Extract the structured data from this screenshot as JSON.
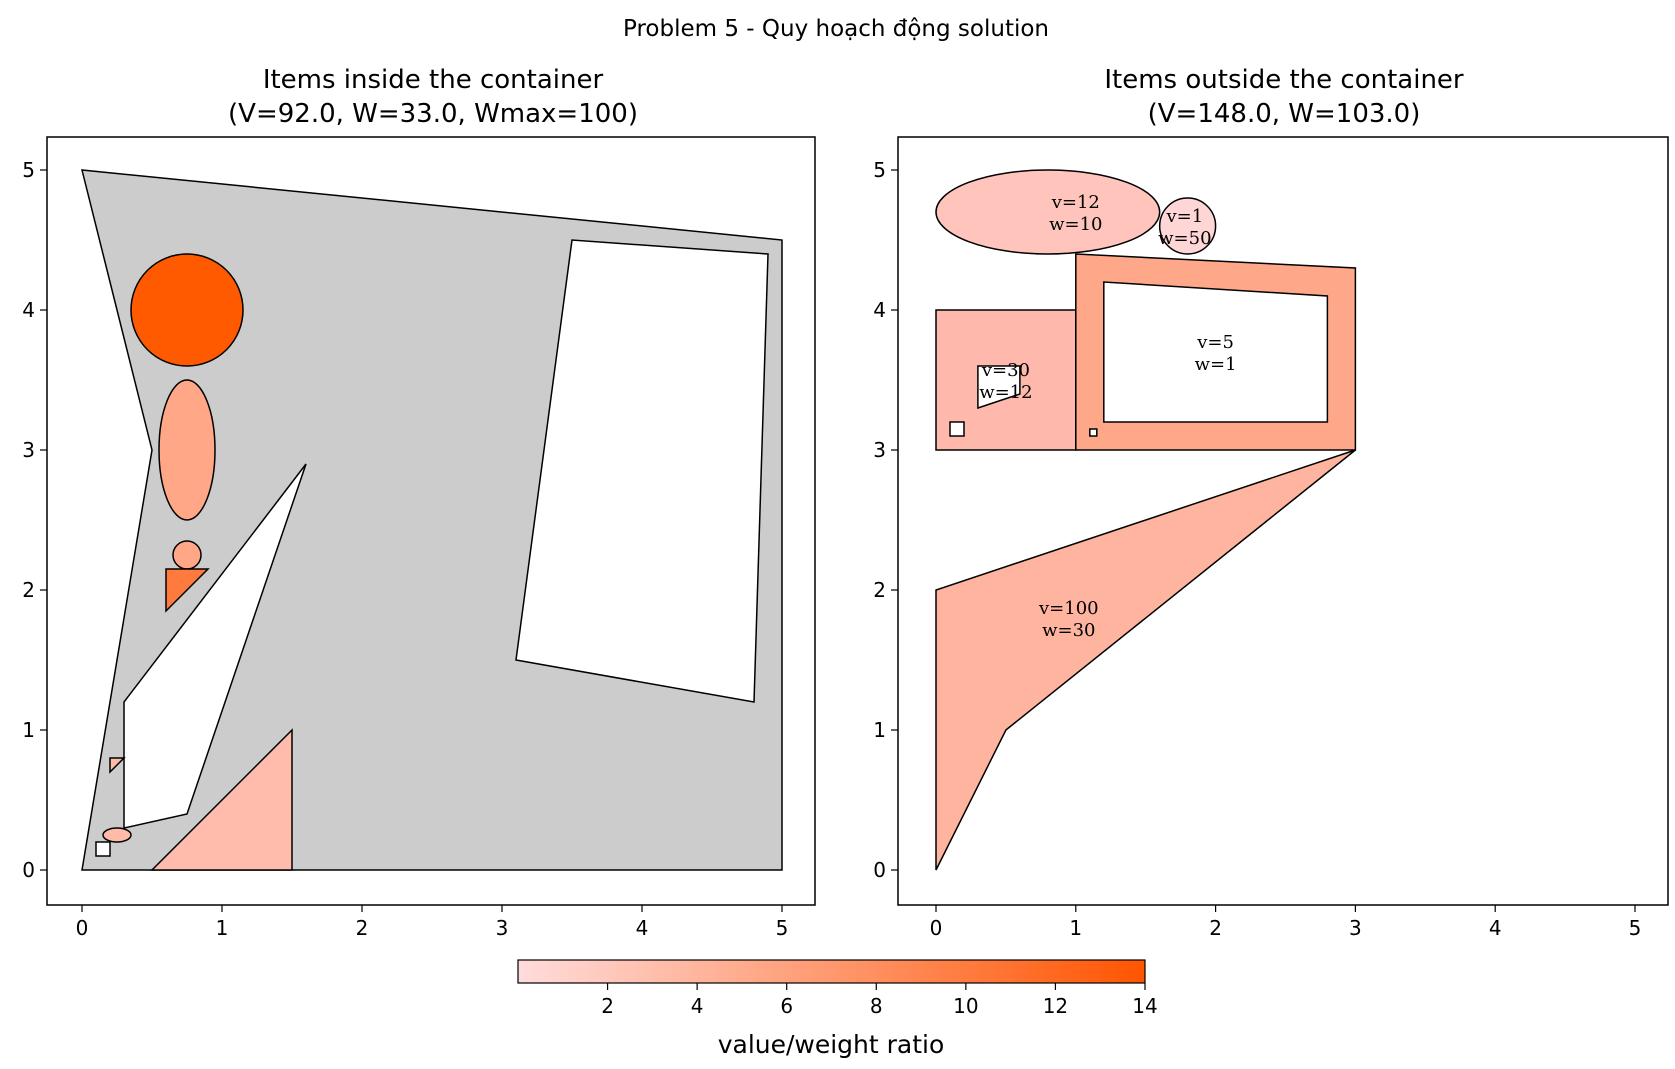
{
  "figure": {
    "suptitle": "Problem 5 - Quy hoạch động solution"
  },
  "chart_data": [
    {
      "type": "polygon-packing",
      "title_line1": "Items inside the container",
      "title_line2": "(V=92.0, W=33.0, Wmax=100)",
      "xlim": [
        -0.25,
        5.25
      ],
      "ylim": [
        -0.25,
        5.25
      ],
      "xticks": [
        "0",
        "1",
        "2",
        "3",
        "4",
        "5"
      ],
      "yticks": [
        "0",
        "1",
        "2",
        "3",
        "4",
        "5"
      ],
      "container": {
        "fill": "#cccccc",
        "outline": [
          [
            0,
            0
          ],
          [
            5,
            0
          ],
          [
            5,
            4.5
          ],
          [
            0,
            5
          ],
          [
            0.5,
            3
          ]
        ],
        "holes": [
          [
            [
              0.3,
              0.3
            ],
            [
              0.75,
              0.4
            ],
            [
              1.6,
              2.9
            ],
            [
              0.3,
              1.2
            ]
          ],
          [
            [
              3.1,
              1.5
            ],
            [
              4.8,
              1.2
            ],
            [
              4.9,
              4.4
            ],
            [
              3.5,
              4.5
            ]
          ]
        ]
      },
      "items": [
        {
          "shape": "circle",
          "center": [
            0.75,
            4.0
          ],
          "r": 0.4,
          "ratio": 14,
          "fill": "#ff5a00"
        },
        {
          "shape": "ellipse",
          "center": [
            0.75,
            3.0
          ],
          "rx": 0.2,
          "ry": 0.5,
          "ratio": 5.5,
          "fill": "#ffa786"
        },
        {
          "shape": "circle",
          "center": [
            0.75,
            2.25
          ],
          "r": 0.1,
          "ratio": 5.5,
          "fill": "#ffa786"
        },
        {
          "shape": "polygon",
          "points": [
            [
              0.6,
              2.15
            ],
            [
              0.9,
              2.15
            ],
            [
              0.6,
              1.85
            ]
          ],
          "ratio": 10,
          "fill": "#ff7a3d"
        },
        {
          "shape": "polygon",
          "points": [
            [
              0.5,
              0
            ],
            [
              1.5,
              0
            ],
            [
              1.5,
              1.0
            ]
          ],
          "ratio": 3.5,
          "fill": "#ffbcad"
        },
        {
          "shape": "polygon",
          "points": [
            [
              0.2,
              0.7
            ],
            [
              0.3,
              0.8
            ],
            [
              0.2,
              0.8
            ]
          ],
          "ratio": 3,
          "fill": "#ffbaa8"
        },
        {
          "shape": "ellipse",
          "center": [
            0.25,
            0.25
          ],
          "rx": 0.1,
          "ry": 0.05,
          "ratio": 3,
          "fill": "#ffbaa8"
        },
        {
          "shape": "polygon",
          "points": [
            [
              0.1,
              0.1
            ],
            [
              0.2,
              0.1
            ],
            [
              0.2,
              0.2
            ],
            [
              0.1,
              0.2
            ]
          ],
          "ratio": 0,
          "fill": "#ffffff"
        }
      ]
    },
    {
      "type": "polygon-packing",
      "title_line1": "Items outside the container",
      "title_line2": "(V=148.0, W=103.0)",
      "xlim": [
        -0.25,
        5.25
      ],
      "ylim": [
        -0.25,
        5.25
      ],
      "xticks": [
        "0",
        "1",
        "2",
        "3",
        "4",
        "5"
      ],
      "yticks": [
        "0",
        "1",
        "2",
        "3",
        "4",
        "5"
      ],
      "items": [
        {
          "shape": "ellipse",
          "center": [
            0.8,
            4.7
          ],
          "rx": 0.8,
          "ry": 0.3,
          "ratio": 1.2,
          "fill": "#ffc4bc",
          "label": "v=12\nw=10",
          "label_pos": [
            1.0,
            4.7
          ]
        },
        {
          "shape": "circle",
          "center": [
            1.8,
            4.6
          ],
          "r": 0.2,
          "ratio": 0.02,
          "fill": "#ffd6d6",
          "label": "v=1\nw=50",
          "label_pos": [
            1.78,
            4.6
          ]
        },
        {
          "shape": "polygon",
          "points": [
            [
              0,
              3
            ],
            [
              1,
              3
            ],
            [
              1,
              4
            ],
            [
              0,
              4
            ]
          ],
          "ratio": 2.5,
          "fill": "#ffb9ac",
          "holes": [
            [
              [
                0.3,
                3.3
              ],
              [
                0.6,
                3.4
              ],
              [
                0.6,
                3.6
              ],
              [
                0.3,
                3.6
              ]
            ],
            [
              [
                0.1,
                3.1
              ],
              [
                0.2,
                3.1
              ],
              [
                0.2,
                3.2
              ],
              [
                0.1,
                3.2
              ]
            ]
          ],
          "label": "v=30\nw=12",
          "label_pos": [
            0.5,
            3.5
          ]
        },
        {
          "shape": "polygon",
          "points": [
            [
              1,
              3
            ],
            [
              3,
              3
            ],
            [
              3,
              4.3
            ],
            [
              1,
              4.4
            ]
          ],
          "ratio": 5,
          "fill": "#ffa889",
          "holes": [
            [
              [
                1.2,
                3.2
              ],
              [
                2.8,
                3.2
              ],
              [
                2.8,
                4.1
              ],
              [
                1.2,
                4.2
              ]
            ],
            [
              [
                1.1,
                3.1
              ],
              [
                1.15,
                3.1
              ],
              [
                1.15,
                3.15
              ],
              [
                1.1,
                3.15
              ]
            ]
          ],
          "label": "v=5\nw=1",
          "label_pos": [
            2.0,
            3.7
          ]
        },
        {
          "shape": "polygon",
          "points": [
            [
              0,
              0
            ],
            [
              0.5,
              1
            ],
            [
              3,
              3
            ],
            [
              0,
              2
            ]
          ],
          "ratio": 3.33,
          "fill": "#ffb49f",
          "label": "v=100\nw=30",
          "label_pos": [
            0.95,
            1.8
          ]
        }
      ]
    }
  ],
  "colorbar": {
    "label": "value/weight ratio",
    "min": 0,
    "max": 14,
    "ticks": [
      "2",
      "4",
      "6",
      "8",
      "10",
      "12",
      "14"
    ],
    "color_low": "#ffdcdc",
    "color_high": "#ff5500"
  }
}
